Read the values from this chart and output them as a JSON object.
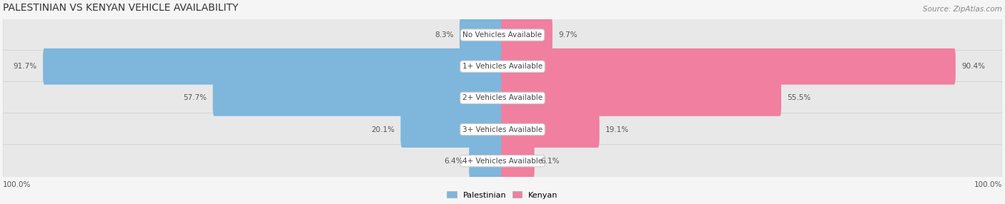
{
  "title": "PALESTINIAN VS KENYAN VEHICLE AVAILABILITY",
  "source": "Source: ZipAtlas.com",
  "categories": [
    "No Vehicles Available",
    "1+ Vehicles Available",
    "2+ Vehicles Available",
    "3+ Vehicles Available",
    "4+ Vehicles Available"
  ],
  "palestinian_values": [
    8.3,
    91.7,
    57.7,
    20.1,
    6.4
  ],
  "kenyan_values": [
    9.7,
    90.4,
    55.5,
    19.1,
    6.1
  ],
  "max_value": 100.0,
  "palestinian_color": "#7EB6DC",
  "kenyan_color": "#F07FA0",
  "palestinian_color_light": "#AECDE8",
  "kenyan_color_light": "#F5A8C0",
  "label_color_palestinian": "#5A9EC9",
  "label_color_kenyan": "#E8658A",
  "bg_row_color": "#EFEFEF",
  "bar_height": 0.55,
  "fig_width": 14.06,
  "fig_height": 2.86,
  "title_fontsize": 10,
  "label_fontsize": 7.5,
  "category_fontsize": 7.5,
  "footer_fontsize": 7.5,
  "legend_fontsize": 8
}
